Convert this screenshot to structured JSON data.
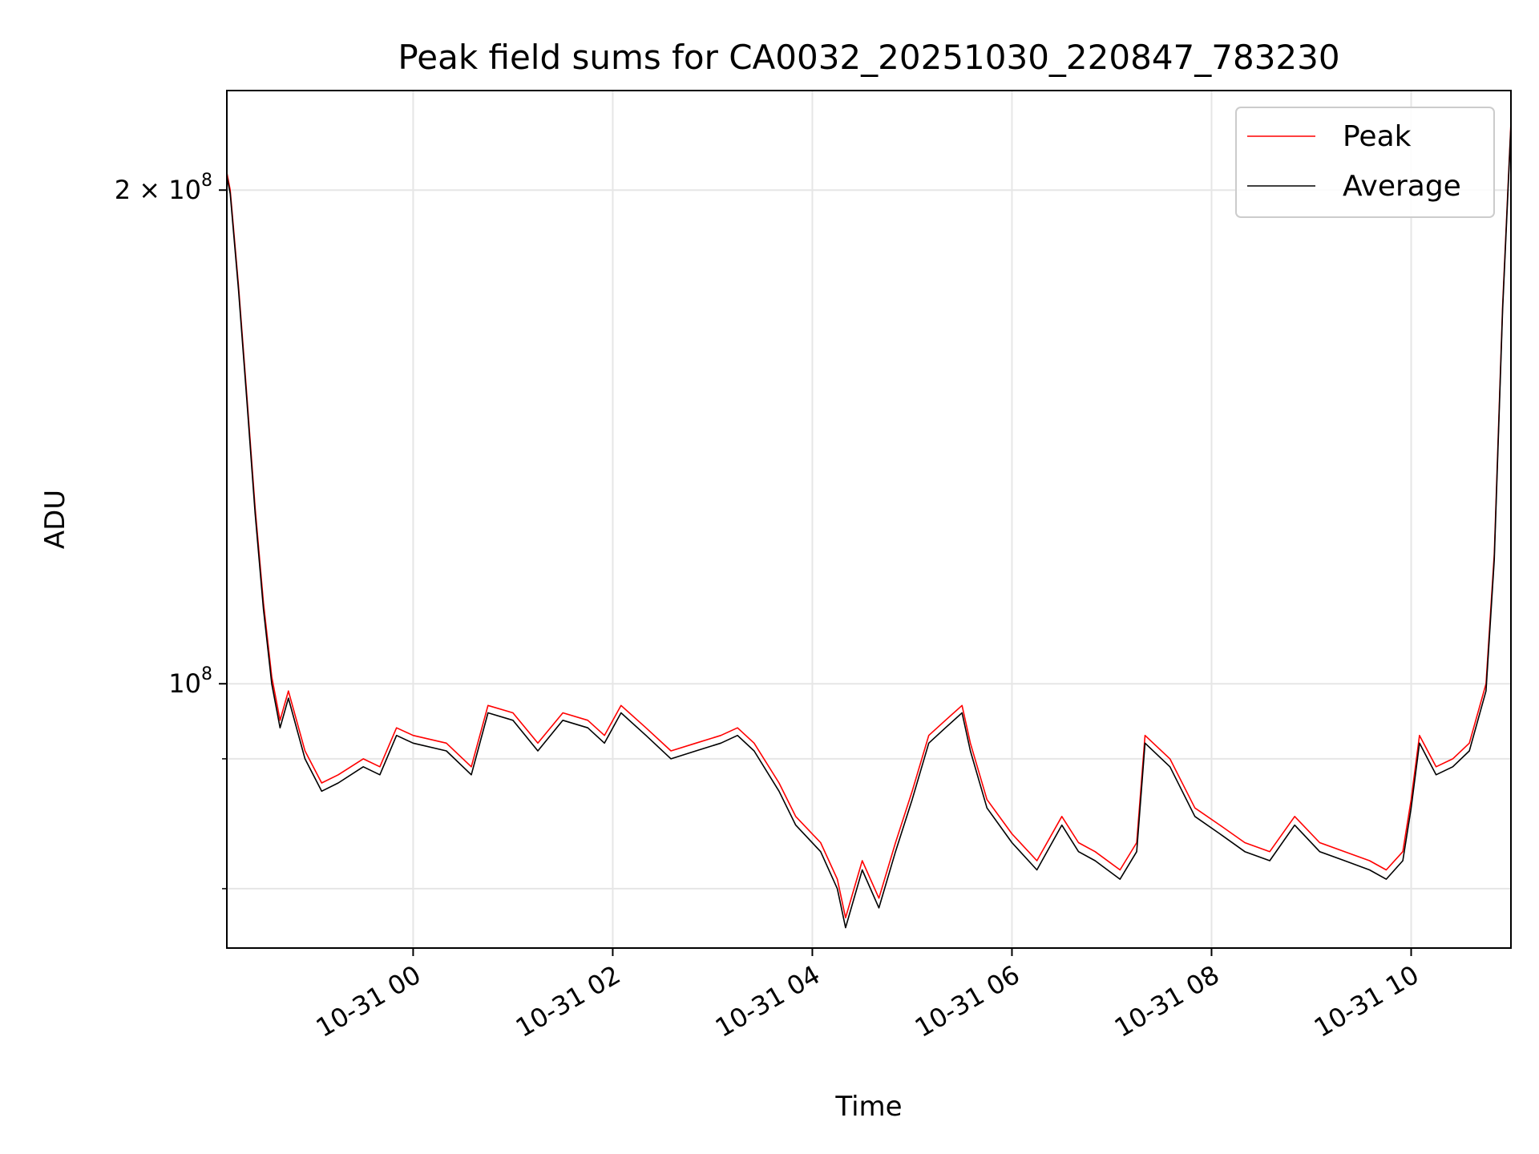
{
  "chart_data": {
    "type": "line",
    "title": "Peak field sums for CA0032_20251030_220847_783230",
    "xlabel": "Time",
    "ylabel": "ADU",
    "y_scale": "log",
    "ylim": [
      69000000,
      230000000
    ],
    "xlim": [
      "2025-10-30 22:08",
      "2025-10-31 11:00"
    ],
    "x_ticks": [
      "10-31 00",
      "10-31 02",
      "10-31 04",
      "10-31 06",
      "10-31 08",
      "10-31 10"
    ],
    "x_tick_times": [
      "2025-10-31 00:00",
      "2025-10-31 02:00",
      "2025-10-31 04:00",
      "2025-10-31 06:00",
      "2025-10-31 08:00",
      "2025-10-31 10:00"
    ],
    "y_major_ticks": [
      {
        "value": 100000000,
        "label_base": "10",
        "label_exp": "8"
      },
      {
        "value": 200000000,
        "label_base": "2 × 10",
        "label_exp": "8"
      }
    ],
    "y_minor_gridlines": [
      75000000,
      90000000
    ],
    "grid": true,
    "legend": {
      "position": "top-right",
      "entries": [
        "Peak",
        "Average"
      ]
    },
    "series": [
      {
        "name": "Peak",
        "color": "#ff0000",
        "x": [
          "2025-10-30 22:08",
          "2025-10-30 22:10",
          "2025-10-30 22:15",
          "2025-10-30 22:20",
          "2025-10-30 22:25",
          "2025-10-30 22:30",
          "2025-10-30 22:35",
          "2025-10-30 22:40",
          "2025-10-30 22:45",
          "2025-10-30 22:55",
          "2025-10-30 23:05",
          "2025-10-30 23:15",
          "2025-10-30 23:30",
          "2025-10-30 23:40",
          "2025-10-30 23:50",
          "2025-10-31 00:00",
          "2025-10-31 00:20",
          "2025-10-31 00:35",
          "2025-10-31 00:45",
          "2025-10-31 01:00",
          "2025-10-31 01:15",
          "2025-10-31 01:30",
          "2025-10-31 01:45",
          "2025-10-31 01:55",
          "2025-10-31 02:05",
          "2025-10-31 02:20",
          "2025-10-31 02:35",
          "2025-10-31 02:50",
          "2025-10-31 03:05",
          "2025-10-31 03:15",
          "2025-10-31 03:25",
          "2025-10-31 03:40",
          "2025-10-31 03:50",
          "2025-10-31 04:05",
          "2025-10-31 04:15",
          "2025-10-31 04:20",
          "2025-10-31 04:30",
          "2025-10-31 04:40",
          "2025-10-31 04:50",
          "2025-10-31 05:00",
          "2025-10-31 05:10",
          "2025-10-31 05:20",
          "2025-10-31 05:30",
          "2025-10-31 05:35",
          "2025-10-31 05:45",
          "2025-10-31 06:00",
          "2025-10-31 06:15",
          "2025-10-31 06:30",
          "2025-10-31 06:40",
          "2025-10-31 06:50",
          "2025-10-31 07:05",
          "2025-10-31 07:15",
          "2025-10-31 07:20",
          "2025-10-31 07:35",
          "2025-10-31 07:50",
          "2025-10-31 08:05",
          "2025-10-31 08:20",
          "2025-10-31 08:35",
          "2025-10-31 08:50",
          "2025-10-31 09:05",
          "2025-10-31 09:20",
          "2025-10-31 09:35",
          "2025-10-31 09:45",
          "2025-10-31 09:55",
          "2025-10-31 10:00",
          "2025-10-31 10:05",
          "2025-10-31 10:15",
          "2025-10-31 10:25",
          "2025-10-31 10:35",
          "2025-10-31 10:45",
          "2025-10-31 10:50",
          "2025-10-31 10:55",
          "2025-10-31 11:00"
        ],
        "y": [
          205000000,
          200000000,
          175000000,
          150000000,
          128000000,
          112000000,
          101000000,
          95000000,
          99000000,
          91000000,
          87000000,
          88000000,
          90000000,
          89000000,
          94000000,
          93000000,
          92000000,
          89000000,
          97000000,
          96000000,
          92000000,
          96000000,
          95000000,
          93000000,
          97000000,
          94000000,
          91000000,
          92000000,
          93000000,
          94000000,
          92000000,
          87000000,
          83000000,
          80000000,
          76000000,
          72000000,
          78000000,
          74000000,
          80000000,
          86000000,
          93000000,
          95000000,
          97000000,
          92000000,
          85000000,
          81000000,
          78000000,
          83000000,
          80000000,
          79000000,
          77000000,
          80000000,
          93000000,
          90000000,
          84000000,
          82000000,
          80000000,
          79000000,
          83000000,
          80000000,
          79000000,
          78000000,
          77000000,
          79000000,
          85000000,
          93000000,
          89000000,
          90000000,
          92000000,
          100000000,
          120000000,
          170000000,
          220000000
        ]
      },
      {
        "name": "Average",
        "color": "#000000",
        "x": [
          "2025-10-30 22:08",
          "2025-10-30 22:10",
          "2025-10-30 22:15",
          "2025-10-30 22:20",
          "2025-10-30 22:25",
          "2025-10-30 22:30",
          "2025-10-30 22:35",
          "2025-10-30 22:40",
          "2025-10-30 22:45",
          "2025-10-30 22:55",
          "2025-10-30 23:05",
          "2025-10-30 23:15",
          "2025-10-30 23:30",
          "2025-10-30 23:40",
          "2025-10-30 23:50",
          "2025-10-31 00:00",
          "2025-10-31 00:20",
          "2025-10-31 00:35",
          "2025-10-31 00:45",
          "2025-10-31 01:00",
          "2025-10-31 01:15",
          "2025-10-31 01:30",
          "2025-10-31 01:45",
          "2025-10-31 01:55",
          "2025-10-31 02:05",
          "2025-10-31 02:20",
          "2025-10-31 02:35",
          "2025-10-31 02:50",
          "2025-10-31 03:05",
          "2025-10-31 03:15",
          "2025-10-31 03:25",
          "2025-10-31 03:40",
          "2025-10-31 03:50",
          "2025-10-31 04:05",
          "2025-10-31 04:15",
          "2025-10-31 04:20",
          "2025-10-31 04:30",
          "2025-10-31 04:40",
          "2025-10-31 04:50",
          "2025-10-31 05:00",
          "2025-10-31 05:10",
          "2025-10-31 05:20",
          "2025-10-31 05:30",
          "2025-10-31 05:35",
          "2025-10-31 05:45",
          "2025-10-31 06:00",
          "2025-10-31 06:15",
          "2025-10-31 06:30",
          "2025-10-31 06:40",
          "2025-10-31 06:50",
          "2025-10-31 07:05",
          "2025-10-31 07:15",
          "2025-10-31 07:20",
          "2025-10-31 07:35",
          "2025-10-31 07:50",
          "2025-10-31 08:05",
          "2025-10-31 08:20",
          "2025-10-31 08:35",
          "2025-10-31 08:50",
          "2025-10-31 09:05",
          "2025-10-31 09:20",
          "2025-10-31 09:35",
          "2025-10-31 09:45",
          "2025-10-31 09:55",
          "2025-10-31 10:00",
          "2025-10-31 10:05",
          "2025-10-31 10:15",
          "2025-10-31 10:25",
          "2025-10-31 10:35",
          "2025-10-31 10:45",
          "2025-10-31 10:50",
          "2025-10-31 10:55",
          "2025-10-31 11:00"
        ],
        "y": [
          204000000,
          199000000,
          174000000,
          149000000,
          127000000,
          111000000,
          100000000,
          94000000,
          98000000,
          90000000,
          86000000,
          87000000,
          89000000,
          88000000,
          93000000,
          92000000,
          91000000,
          88000000,
          96000000,
          95000000,
          91000000,
          95000000,
          94000000,
          92000000,
          96000000,
          93000000,
          90000000,
          91000000,
          92000000,
          93000000,
          91000000,
          86000000,
          82000000,
          79000000,
          75000000,
          71000000,
          77000000,
          73000000,
          79000000,
          85000000,
          92000000,
          94000000,
          96000000,
          91000000,
          84000000,
          80000000,
          77000000,
          82000000,
          79000000,
          78000000,
          76000000,
          79000000,
          92000000,
          89000000,
          83000000,
          81000000,
          79000000,
          78000000,
          82000000,
          79000000,
          78000000,
          77000000,
          76000000,
          78000000,
          84000000,
          92000000,
          88000000,
          89000000,
          91000000,
          99000000,
          119000000,
          169000000,
          219000000
        ]
      }
    ]
  }
}
